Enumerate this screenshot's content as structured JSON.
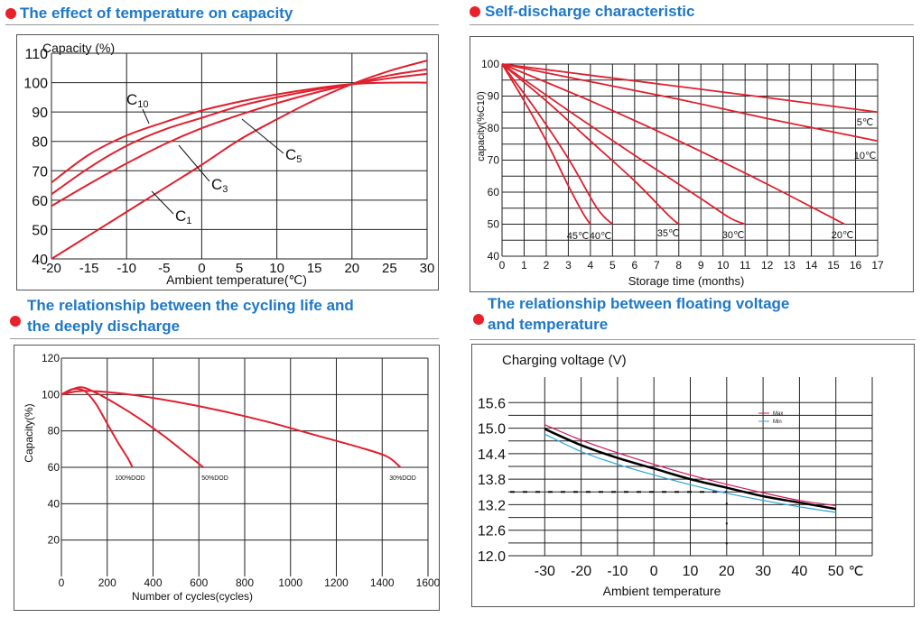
{
  "headers": {
    "p1": "The effect of temperature on capacity",
    "p2": "Self-discharge characteristic",
    "p3_line1": "The relationship between the cycling life and",
    "p3_line2": "the deeply discharge",
    "p4_line1": "The relationship between floating voltage",
    "p4_line2": "and temperature"
  },
  "colors": {
    "header": "#1e78c8",
    "bullet": "#e8202a",
    "curve": "#e0202e",
    "grid": "#222222",
    "max": "#d4145a",
    "min": "#29a3d6",
    "nominal": "#000000"
  },
  "chart_data": [
    {
      "id": "temp_capacity",
      "type": "line",
      "title": "",
      "xlabel": "Ambient temperature(℃)",
      "ylabel": "Capacity (%)",
      "xlim": [
        -20,
        30
      ],
      "ylim": [
        40,
        110
      ],
      "x_ticks": [
        "-20",
        "-15",
        "-10",
        "-5",
        "0",
        "5",
        "10",
        "15",
        "20",
        "25",
        "30"
      ],
      "y_ticks": [
        "40",
        "50",
        "60",
        "70",
        "80",
        "90",
        "100",
        "110"
      ],
      "grid": true,
      "series": [
        {
          "name": "C10",
          "label": "C",
          "sub": "10",
          "x": [
            -20,
            -15,
            -10,
            -5,
            0,
            5,
            10,
            15,
            20,
            25,
            30
          ],
          "values": [
            66,
            75.5,
            82,
            86.5,
            90.5,
            93.5,
            96,
            98,
            99.5,
            100,
            100
          ]
        },
        {
          "name": "C5",
          "label": "C",
          "sub": "5",
          "x": [
            -20,
            -15,
            -10,
            -5,
            0,
            5,
            10,
            15,
            20,
            25,
            30
          ],
          "values": [
            62,
            71,
            78.5,
            84,
            88,
            92,
            95,
            97.5,
            99.5,
            101.5,
            103
          ]
        },
        {
          "name": "C3",
          "label": "C",
          "sub": "3",
          "x": [
            -20,
            -15,
            -10,
            -5,
            0,
            5,
            10,
            15,
            20,
            25,
            30
          ],
          "values": [
            58,
            65.5,
            72.5,
            79,
            84.5,
            89,
            93,
            96.5,
            99.5,
            102.5,
            104.5
          ]
        },
        {
          "name": "C1",
          "label": "C",
          "sub": "1",
          "x": [
            -20,
            -15,
            -10,
            -5,
            0,
            5,
            10,
            15,
            20,
            25,
            30
          ],
          "values": [
            40,
            48,
            56,
            64,
            72,
            80.5,
            87.5,
            94,
            99.5,
            104,
            107.5
          ]
        }
      ]
    },
    {
      "id": "self_discharge",
      "type": "line",
      "title": "",
      "xlabel": "Storage time (months)",
      "ylabel": "capacity(%C10)",
      "xlim": [
        0,
        17
      ],
      "ylim": [
        40,
        100
      ],
      "x_ticks": [
        "0",
        "1",
        "2",
        "3",
        "4",
        "5",
        "6",
        "7",
        "8",
        "9",
        "10",
        "11",
        "12",
        "13",
        "14",
        "15",
        "16",
        "17"
      ],
      "y_ticks": [
        "40",
        "50",
        "60",
        "70",
        "80",
        "90",
        "100"
      ],
      "grid": true,
      "series": [
        {
          "name": "5℃",
          "x": [
            0,
            4,
            8,
            12,
            17
          ],
          "values": [
            100,
            96.5,
            93,
            89.5,
            85
          ]
        },
        {
          "name": "10℃",
          "x": [
            0,
            4,
            8,
            12,
            17
          ],
          "values": [
            100,
            94.5,
            89,
            83,
            76
          ]
        },
        {
          "name": "20℃",
          "x": [
            0,
            4,
            8,
            12,
            15.5
          ],
          "values": [
            100,
            88.5,
            76,
            62.5,
            50
          ]
        },
        {
          "name": "30℃",
          "x": [
            0,
            3,
            6,
            9,
            10.3,
            11
          ],
          "values": [
            100,
            85.5,
            71.5,
            58,
            52,
            50
          ]
        },
        {
          "name": "35℃",
          "x": [
            0,
            2,
            4,
            6,
            7.5,
            8
          ],
          "values": [
            100,
            88.5,
            76,
            63.5,
            53,
            50
          ]
        },
        {
          "name": "40℃",
          "x": [
            0,
            1.5,
            3,
            4.3,
            5
          ],
          "values": [
            100,
            86,
            70.5,
            55,
            50
          ]
        },
        {
          "name": "45℃",
          "x": [
            0,
            1,
            2,
            3,
            3.7,
            4
          ],
          "values": [
            100,
            88.5,
            76,
            62,
            53,
            50
          ]
        }
      ]
    },
    {
      "id": "cycle_life",
      "type": "line",
      "title": "",
      "xlabel": "Number of cycles(cycles)",
      "ylabel": "Capacity(%)",
      "xlim": [
        0,
        1600
      ],
      "ylim": [
        0,
        120
      ],
      "x_ticks": [
        "0",
        "200",
        "400",
        "600",
        "800",
        "1000",
        "1200",
        "1400",
        "1600"
      ],
      "y_ticks": [
        "20",
        "40",
        "60",
        "80",
        "100",
        "120"
      ],
      "grid": true,
      "series": [
        {
          "name": "100%DOD",
          "x": [
            0,
            50,
            100,
            150,
            200,
            250,
            290,
            310
          ],
          "values": [
            100,
            103,
            102,
            95,
            84,
            73,
            65,
            60
          ]
        },
        {
          "name": "50%DOD",
          "x": [
            0,
            80,
            150,
            250,
            350,
            450,
            550,
            620
          ],
          "values": [
            100,
            104,
            101,
            94,
            86,
            77,
            67,
            60
          ]
        },
        {
          "name": "30%DOD",
          "x": [
            0,
            100,
            300,
            500,
            700,
            900,
            1100,
            1300,
            1420,
            1480
          ],
          "values": [
            100,
            102,
            100,
            96,
            91,
            85,
            78,
            71,
            66,
            60
          ]
        }
      ]
    },
    {
      "id": "float_voltage",
      "type": "line",
      "title": "",
      "xlabel": "Ambient temperature",
      "ylabel": "Charging voltage (V)",
      "x_unit": "℃",
      "xlim": [
        -40,
        60
      ],
      "ylim": [
        12.0,
        16.2
      ],
      "x_ticks": [
        "-30",
        "-20",
        "-10",
        "0",
        "10",
        "20",
        "30",
        "40",
        "50"
      ],
      "y_ticks": [
        "12.0",
        "12.6",
        "13.2",
        "13.8",
        "14.4",
        "15.0",
        "15.6"
      ],
      "grid": true,
      "legend": "top-right",
      "reference_y": 13.5,
      "series": [
        {
          "name": "Max",
          "x": [
            -30,
            -20,
            -10,
            0,
            10,
            20,
            30,
            40,
            50
          ],
          "values": [
            15.08,
            14.72,
            14.42,
            14.15,
            13.9,
            13.68,
            13.48,
            13.3,
            13.18
          ]
        },
        {
          "name": "",
          "x": [
            -30,
            -20,
            -10,
            0,
            10,
            20,
            30,
            40,
            50
          ],
          "values": [
            14.98,
            14.6,
            14.3,
            14.05,
            13.8,
            13.6,
            13.4,
            13.25,
            13.1
          ]
        },
        {
          "name": "Min",
          "x": [
            -30,
            -20,
            -10,
            0,
            10,
            20,
            30,
            40,
            50
          ],
          "values": [
            14.86,
            14.45,
            14.15,
            13.9,
            13.67,
            13.47,
            13.3,
            13.15,
            13.02
          ]
        }
      ]
    }
  ]
}
